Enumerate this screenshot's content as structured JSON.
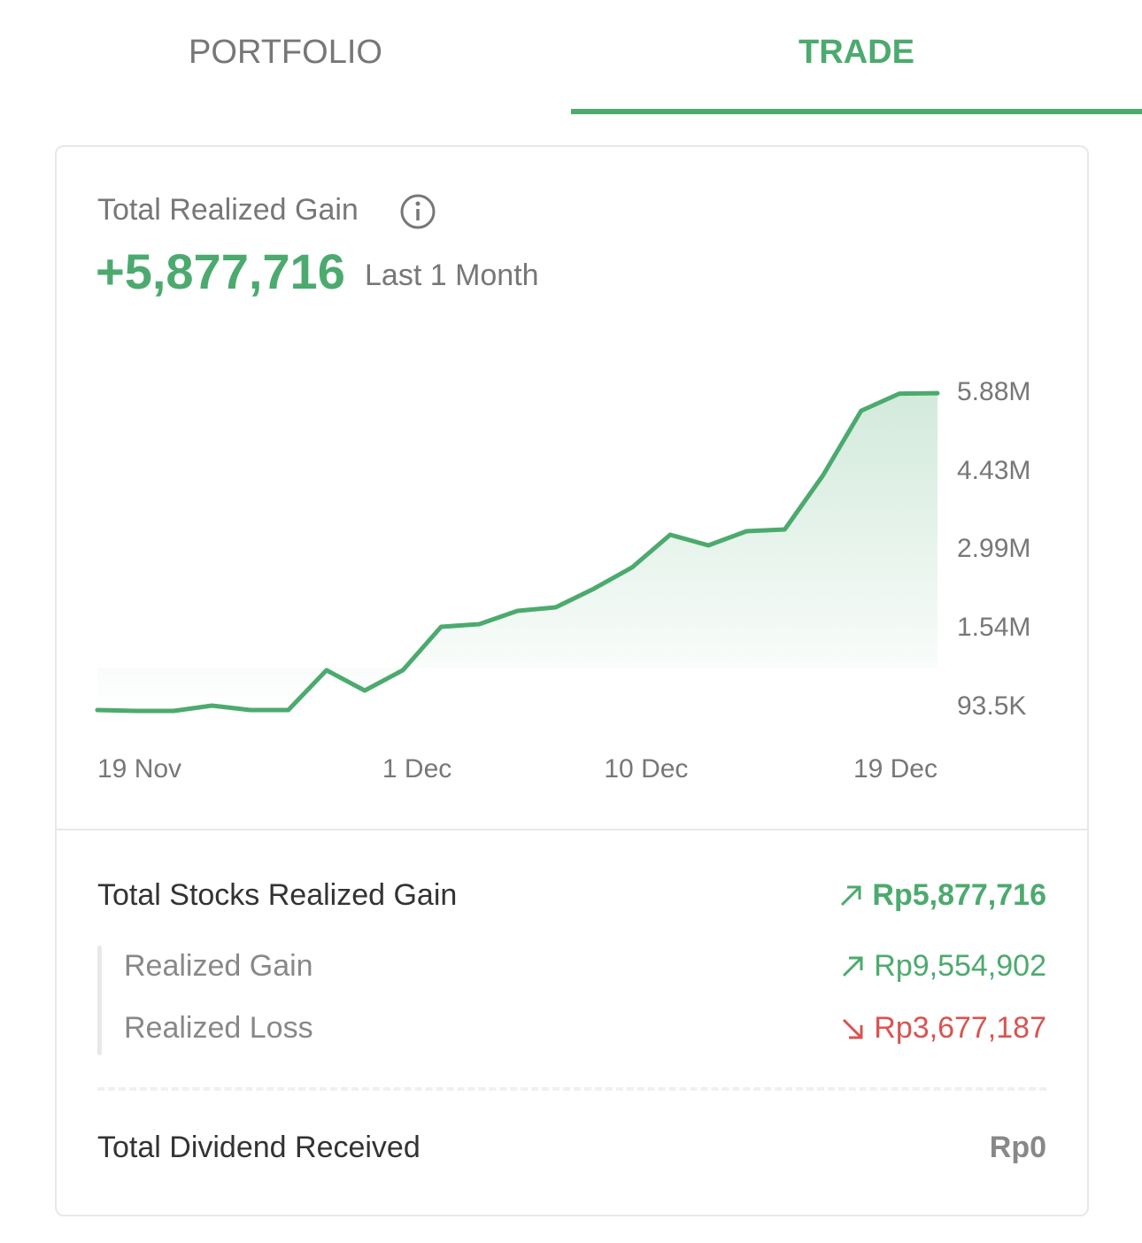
{
  "tabs": {
    "items": [
      "PORTFOLIO",
      "TRADE"
    ],
    "active": 1
  },
  "header": {
    "title": "Total Realized Gain",
    "value": "+5,877,716",
    "period": "Last 1 Month"
  },
  "chart_data": {
    "type": "line",
    "categories": [
      "19 Nov",
      null,
      null,
      null,
      null,
      null,
      null,
      null,
      "1 Dec",
      null,
      null,
      null,
      null,
      null,
      "10 Dec",
      null,
      null,
      null,
      null,
      null,
      null,
      null,
      "19 Dec"
    ],
    "values": [
      45000,
      28000,
      28000,
      126000,
      45000,
      45000,
      778000,
      403000,
      778000,
      1577000,
      1626000,
      1870000,
      1935000,
      2278000,
      2669000,
      3272000,
      3076000,
      3337000,
      3370000,
      4364000,
      5554000,
      5870000,
      5877716
    ],
    "color": "#4caa6e",
    "ylim": [
      93500,
      5880000
    ],
    "yticks": [
      {
        "value": 93500,
        "label": "93.5K"
      },
      {
        "value": 1540000,
        "label": "1.54M"
      },
      {
        "value": 2990000,
        "label": "2.99M"
      },
      {
        "value": 4430000,
        "label": "4.43M"
      },
      {
        "value": 5880000,
        "label": "5.88M"
      }
    ],
    "grid": false
  },
  "summary": {
    "total_stocks": {
      "label": "Total Stocks Realized Gain",
      "value": "Rp5,877,716"
    },
    "gain": {
      "label": "Realized Gain",
      "value": "Rp9,554,902"
    },
    "loss": {
      "label": "Realized Loss",
      "value": "Rp3,677,187"
    },
    "dividend": {
      "label": "Total Dividend Received",
      "value": "Rp0"
    }
  }
}
